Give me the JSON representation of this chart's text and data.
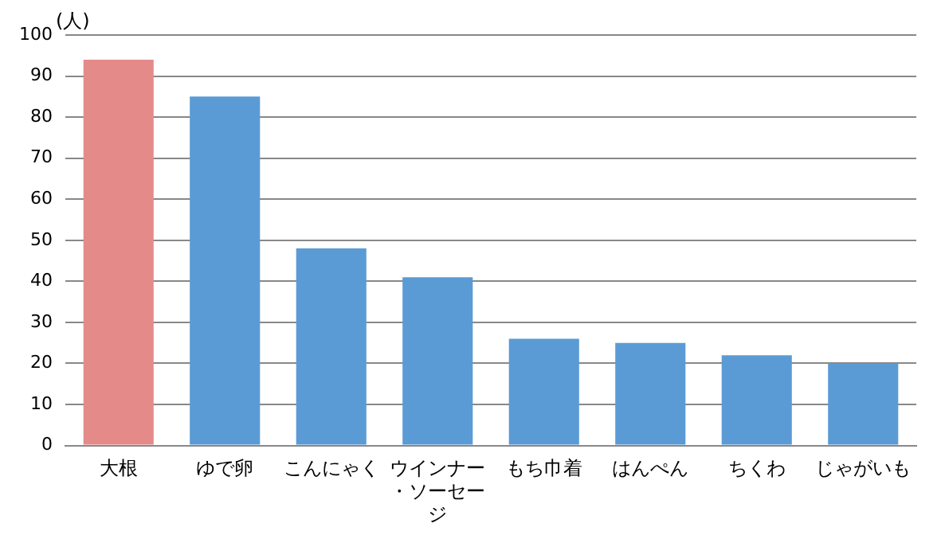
{
  "chart_data": {
    "type": "bar",
    "ylabel": "(人)",
    "categories": [
      "大根",
      "ゆで卵",
      "こんにゃく",
      "ウインナー・ソーセージ",
      "もち巾着",
      "はんぺん",
      "ちくわ",
      "じゃがいも"
    ],
    "values": [
      94,
      85,
      48,
      41,
      26,
      25,
      22,
      20
    ],
    "colors": [
      "#e48b8a",
      "#5b9bd5",
      "#5b9bd5",
      "#5b9bd5",
      "#5b9bd5",
      "#5b9bd5",
      "#5b9bd5",
      "#5b9bd5"
    ],
    "ylim": [
      0,
      100
    ],
    "yticks": [
      0,
      10,
      20,
      30,
      40,
      50,
      60,
      70,
      80,
      90,
      100
    ],
    "grid": "y",
    "legend": false
  }
}
